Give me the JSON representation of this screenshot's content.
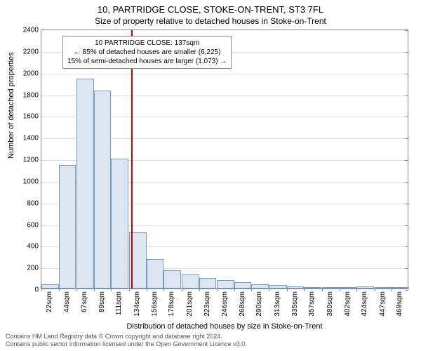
{
  "title_main": "10, PARTRIDGE CLOSE, STOKE-ON-TRENT, ST3 7FL",
  "title_sub": "Size of property relative to detached houses in Stoke-on-Trent",
  "y_axis_label": "Number of detached properties",
  "x_axis_label": "Distribution of detached houses by size in Stoke-on-Trent",
  "info_box": {
    "line1": "10 PARTRIDGE CLOSE: 137sqm",
    "line2": "← 85% of detached houses are smaller (6,225)",
    "line3": "15% of semi-detached houses are larger (1,073) →"
  },
  "footer_line1": "Contains HM Land Registry data © Crown copyright and database right 2024.",
  "footer_line2": "Contains public sector information licensed under the Open Government Licence v3.0.",
  "chart": {
    "type": "histogram",
    "y_min": 0,
    "y_max": 2400,
    "y_tick_step": 200,
    "bar_fill": "#dce6f2",
    "bar_stroke": "#7a9ac0",
    "grid_color": "#dddddd",
    "marker_value": 137,
    "marker_color": "#cc0000",
    "x_categories": [
      "22sqm",
      "44sqm",
      "67sqm",
      "89sqm",
      "111sqm",
      "134sqm",
      "156sqm",
      "178sqm",
      "201sqm",
      "223sqm",
      "246sqm",
      "268sqm",
      "290sqm",
      "313sqm",
      "335sqm",
      "357sqm",
      "380sqm",
      "402sqm",
      "424sqm",
      "447sqm",
      "469sqm"
    ],
    "x_bin_starts": [
      22,
      44,
      67,
      89,
      111,
      134,
      156,
      178,
      201,
      223,
      246,
      268,
      290,
      313,
      335,
      357,
      380,
      402,
      424,
      447,
      469
    ],
    "x_bin_width_value": 22,
    "values": [
      40,
      1140,
      1940,
      1830,
      1200,
      520,
      270,
      170,
      130,
      100,
      75,
      60,
      40,
      30,
      20,
      15,
      10,
      8,
      20,
      5,
      5
    ]
  }
}
